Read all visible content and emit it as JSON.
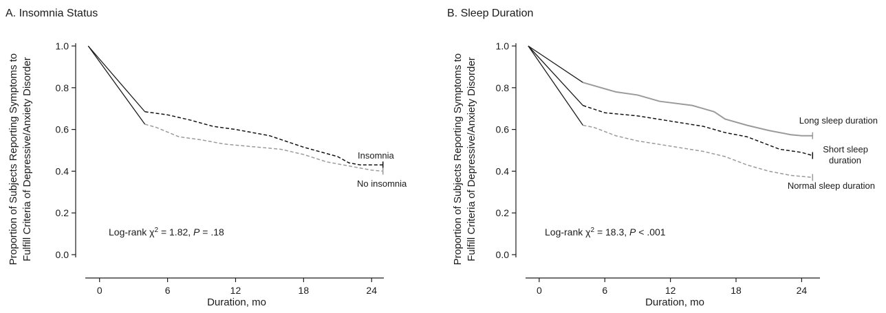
{
  "chart_data": [
    {
      "type": "line",
      "title": "A. Insomnia Status",
      "xlabel": "Duration, mo",
      "ylabel_lines": [
        "Proportion of Subjects Reporting Symptoms to",
        "Fulfill Criteria of Depressive/Anxiety Disorder"
      ],
      "xlim": [
        -1.5,
        25.2
      ],
      "ylim": [
        0,
        1.0
      ],
      "x_ticks": [
        0,
        6,
        12,
        18,
        24
      ],
      "y_ticks": [
        0.0,
        0.2,
        0.4,
        0.6,
        0.8,
        1.0
      ],
      "y_tick_labels": [
        "0.0",
        "0.2",
        "0.4",
        "0.6",
        "0.8",
        "1.0"
      ],
      "grid": false,
      "annotation": {
        "prefix": "Log-rank χ",
        "sup": "2",
        "middle": " = 1.82, ",
        "p": "P",
        "suffix": " = .18"
      },
      "series": [
        {
          "name": "Insomnia",
          "color": "#111111",
          "dash": "dashed",
          "x": [
            -1,
            4,
            6,
            8,
            10,
            12,
            15,
            18,
            21,
            22,
            23,
            24,
            25
          ],
          "y": [
            1.0,
            0.685,
            0.67,
            0.645,
            0.615,
            0.6,
            0.57,
            0.515,
            0.47,
            0.44,
            0.43,
            0.43,
            0.43
          ]
        },
        {
          "name": "No insomnia",
          "color": "#9a9a9a",
          "dash": "dashed",
          "x": [
            -1,
            4,
            5,
            7,
            9,
            11,
            13,
            16,
            18,
            20,
            22,
            24,
            25
          ],
          "y": [
            1.0,
            0.625,
            0.61,
            0.565,
            0.55,
            0.53,
            0.52,
            0.505,
            0.48,
            0.445,
            0.425,
            0.405,
            0.4
          ]
        }
      ]
    },
    {
      "type": "line",
      "title": "B. Sleep Duration",
      "xlabel": "Duration, mo",
      "ylabel_lines": [
        "Proportion of Subjects Reporting Symptoms to",
        "Fulfill Criteria of Depressive/Anxiety Disorder"
      ],
      "xlim": [
        -1.5,
        25.8
      ],
      "ylim": [
        0,
        1.0
      ],
      "x_ticks": [
        0,
        6,
        12,
        18,
        24
      ],
      "y_ticks": [
        0.0,
        0.2,
        0.4,
        0.6,
        0.8,
        1.0
      ],
      "y_tick_labels": [
        "0.0",
        "0.2",
        "0.4",
        "0.6",
        "0.8",
        "1.0"
      ],
      "grid": false,
      "annotation": {
        "prefix": "Log-rank χ",
        "sup": "2",
        "middle": " = 18.3, ",
        "p": "P",
        "suffix": " < .001"
      },
      "series": [
        {
          "name": "Long sleep duration",
          "color": "#9a9a9a",
          "dash": "solid",
          "x": [
            -1,
            4,
            7,
            9,
            11,
            14,
            16,
            17,
            19,
            21,
            23,
            24,
            25
          ],
          "y": [
            1.0,
            0.825,
            0.78,
            0.765,
            0.735,
            0.715,
            0.685,
            0.65,
            0.62,
            0.595,
            0.575,
            0.57,
            0.57
          ]
        },
        {
          "name": "Short sleep duration",
          "color": "#111111",
          "dash": "dashed",
          "x": [
            -1,
            4,
            6,
            9,
            12,
            15,
            17,
            19,
            21,
            22,
            24,
            25
          ],
          "y": [
            1.0,
            0.715,
            0.68,
            0.665,
            0.64,
            0.615,
            0.585,
            0.565,
            0.525,
            0.505,
            0.49,
            0.475
          ]
        },
        {
          "name": "Normal sleep duration",
          "color": "#9a9a9a",
          "dash": "dashed",
          "x": [
            -1,
            4,
            5,
            7,
            9,
            12,
            15,
            17,
            19,
            21,
            23,
            25
          ],
          "y": [
            1.0,
            0.62,
            0.61,
            0.57,
            0.545,
            0.52,
            0.495,
            0.47,
            0.43,
            0.4,
            0.38,
            0.37
          ]
        }
      ],
      "series_labels": [
        {
          "lines": [
            "Long sleep duration"
          ]
        },
        {
          "lines": [
            "Short sleep",
            "duration"
          ]
        },
        {
          "lines": [
            "Normal sleep duration"
          ]
        }
      ]
    }
  ]
}
